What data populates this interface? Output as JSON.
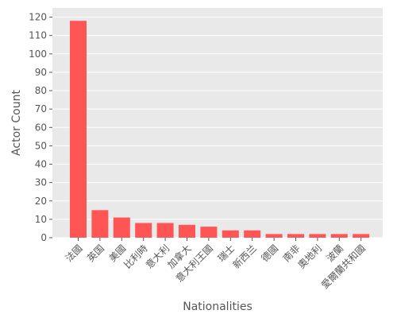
{
  "chart_data": {
    "type": "bar",
    "title": "",
    "xlabel": "Nationalities",
    "ylabel": "Actor Count",
    "categories": [
      "法國",
      "英国",
      "美國",
      "比利時",
      "意大利",
      "加拿大",
      "意大利王國",
      "瑞士",
      "新西兰",
      "德國",
      "南非",
      "奧地利",
      "波蘭",
      "愛爾蘭共和國"
    ],
    "values": [
      118,
      15,
      11,
      8,
      8,
      7,
      6,
      4,
      4,
      2,
      2,
      2,
      2,
      2
    ],
    "ylim": [
      0,
      125
    ],
    "yticks": [
      0,
      10,
      20,
      30,
      40,
      50,
      60,
      70,
      80,
      90,
      100,
      110,
      120
    ],
    "grid": true,
    "legend": "none",
    "colors": {
      "bar": "#ff5555",
      "panel": "#e9e9e9",
      "grid": "#ffffff",
      "text": "#555555"
    }
  }
}
